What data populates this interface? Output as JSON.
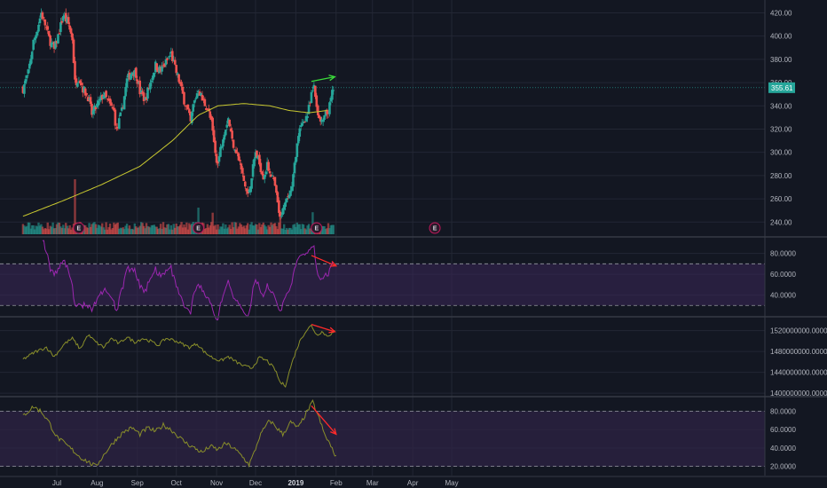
{
  "colors": {
    "background": "#131722",
    "grid": "#232734",
    "up": "#26a69a",
    "down": "#ef5350",
    "sma": "#c9c930",
    "rsi": "#9c27b0",
    "rsi_band": "#3a2657",
    "osc": "#8a8f2a",
    "osc_band": "#2f2446",
    "trend_up": "#3adb3a",
    "trend_down": "#ff2a2a",
    "price_tag": "#26a69a",
    "axis_text": "#b2b5be",
    "earnings": "#c2185b",
    "dashed": "#9598a1"
  },
  "earnings_label": "E",
  "price_tag": "355.61",
  "chart_data": [
    {
      "type": "candlestick",
      "pane": "price",
      "y_ticks": [
        "420.00",
        "400.00",
        "380.00",
        "360.00",
        "340.00",
        "320.00",
        "300.00",
        "280.00",
        "260.00",
        "240.00"
      ],
      "ylim": [
        228,
        428
      ],
      "last_price": 355.61,
      "x_tick_labels": [
        "Jul",
        "Aug",
        "Sep",
        "Oct",
        "Nov",
        "Dec",
        "2019",
        "Feb",
        "Mar",
        "Apr",
        "May"
      ],
      "x_tick_days": [
        16,
        47,
        78,
        108,
        139,
        169,
        200,
        231,
        259,
        290,
        320
      ],
      "earnings_days": [
        33,
        125,
        216,
        307
      ],
      "sma_anchors": [
        [
          -10,
          245
        ],
        [
          20,
          258
        ],
        [
          50,
          272
        ],
        [
          80,
          288
        ],
        [
          105,
          310
        ],
        [
          125,
          332
        ],
        [
          140,
          340
        ],
        [
          160,
          342
        ],
        [
          180,
          340
        ],
        [
          195,
          336
        ],
        [
          210,
          334
        ],
        [
          224,
          336
        ]
      ],
      "anchors": [
        [
          -10,
          355
        ],
        [
          -6,
          368
        ],
        [
          -2,
          395
        ],
        [
          0,
          402
        ],
        [
          4,
          420
        ],
        [
          7,
          410
        ],
        [
          10,
          398
        ],
        [
          14,
          388
        ],
        [
          17,
          400
        ],
        [
          21,
          418
        ],
        [
          25,
          410
        ],
        [
          28,
          398
        ],
        [
          30,
          360
        ],
        [
          33,
          365
        ],
        [
          36,
          355
        ],
        [
          40,
          348
        ],
        [
          43,
          333
        ],
        [
          47,
          340
        ],
        [
          52,
          350
        ],
        [
          56,
          342
        ],
        [
          60,
          335
        ],
        [
          62,
          318
        ],
        [
          66,
          335
        ],
        [
          70,
          362
        ],
        [
          74,
          370
        ],
        [
          77,
          368
        ],
        [
          80,
          352
        ],
        [
          84,
          345
        ],
        [
          88,
          360
        ],
        [
          92,
          375
        ],
        [
          96,
          370
        ],
        [
          100,
          377
        ],
        [
          104,
          385
        ],
        [
          107,
          372
        ],
        [
          110,
          362
        ],
        [
          114,
          345
        ],
        [
          117,
          335
        ],
        [
          119,
          325
        ],
        [
          121,
          340
        ],
        [
          125,
          355
        ],
        [
          128,
          345
        ],
        [
          132,
          338
        ],
        [
          135,
          325
        ],
        [
          138,
          300
        ],
        [
          140,
          290
        ],
        [
          144,
          315
        ],
        [
          148,
          330
        ],
        [
          151,
          310
        ],
        [
          154,
          302
        ],
        [
          157,
          290
        ],
        [
          160,
          275
        ],
        [
          163,
          262
        ],
        [
          166,
          280
        ],
        [
          169,
          300
        ],
        [
          172,
          290
        ],
        [
          175,
          280
        ],
        [
          178,
          288
        ],
        [
          181,
          282
        ],
        [
          184,
          270
        ],
        [
          186,
          255
        ],
        [
          188,
          242
        ],
        [
          191,
          252
        ],
        [
          194,
          262
        ],
        [
          197,
          268
        ],
        [
          200,
          300
        ],
        [
          203,
          318
        ],
        [
          206,
          328
        ],
        [
          209,
          332
        ],
        [
          212,
          348
        ],
        [
          214,
          358
        ],
        [
          216,
          340
        ],
        [
          218,
          328
        ],
        [
          220,
          325
        ],
        [
          222,
          330
        ],
        [
          225,
          335
        ],
        [
          227,
          345
        ],
        [
          229,
          355
        ]
      ],
      "trend_line": {
        "from": [
          212,
          361
        ],
        "to": [
          230,
          365
        ],
        "direction": "up"
      }
    },
    {
      "type": "line",
      "pane": "rsi",
      "y_ticks": [
        "80.0000",
        "60.0000",
        "40.0000"
      ],
      "ylim": [
        20,
        95
      ],
      "bands": [
        30,
        70
      ],
      "trend_line": {
        "from": [
          212,
          78
        ],
        "to": [
          231,
          68
        ],
        "direction": "down"
      }
    },
    {
      "type": "line",
      "pane": "obv",
      "y_ticks": [
        "1520000000.0000",
        "1480000000.0000",
        "1440000000.0000",
        "1400000000.0000"
      ],
      "ylim": [
        1395000000,
        1545000000
      ],
      "anchors": [
        [
          -10,
          1465000000
        ],
        [
          0,
          1480000000
        ],
        [
          8,
          1488000000
        ],
        [
          14,
          1470000000
        ],
        [
          22,
          1495000000
        ],
        [
          28,
          1505000000
        ],
        [
          34,
          1485000000
        ],
        [
          40,
          1512000000
        ],
        [
          46,
          1498000000
        ],
        [
          52,
          1488000000
        ],
        [
          58,
          1505000000
        ],
        [
          64,
          1495000000
        ],
        [
          70,
          1508000000
        ],
        [
          76,
          1498000000
        ],
        [
          82,
          1505000000
        ],
        [
          88,
          1500000000
        ],
        [
          94,
          1492000000
        ],
        [
          100,
          1505000000
        ],
        [
          106,
          1502000000
        ],
        [
          112,
          1495000000
        ],
        [
          118,
          1488000000
        ],
        [
          124,
          1495000000
        ],
        [
          130,
          1478000000
        ],
        [
          136,
          1468000000
        ],
        [
          142,
          1462000000
        ],
        [
          148,
          1470000000
        ],
        [
          154,
          1460000000
        ],
        [
          160,
          1452000000
        ],
        [
          166,
          1448000000
        ],
        [
          172,
          1468000000
        ],
        [
          178,
          1462000000
        ],
        [
          184,
          1445000000
        ],
        [
          188,
          1420000000
        ],
        [
          192,
          1415000000
        ],
        [
          196,
          1450000000
        ],
        [
          200,
          1480000000
        ],
        [
          204,
          1505000000
        ],
        [
          208,
          1520000000
        ],
        [
          212,
          1530000000
        ],
        [
          216,
          1512000000
        ],
        [
          220,
          1518000000
        ],
        [
          224,
          1510000000
        ],
        [
          228,
          1515000000
        ],
        [
          230,
          1518000000
        ]
      ],
      "trend_line": {
        "from": [
          212,
          1532000000
        ],
        "to": [
          230,
          1518000000
        ],
        "direction": "down"
      }
    },
    {
      "type": "line",
      "pane": "oscillator",
      "y_ticks": [
        "80.0000",
        "60.0000",
        "40.0000",
        "20.0000"
      ],
      "ylim": [
        10,
        95
      ],
      "bands": [
        20,
        80
      ],
      "anchors": [
        [
          -10,
          75
        ],
        [
          -2,
          85
        ],
        [
          4,
          80
        ],
        [
          10,
          68
        ],
        [
          16,
          52
        ],
        [
          22,
          45
        ],
        [
          28,
          38
        ],
        [
          34,
          30
        ],
        [
          40,
          25
        ],
        [
          46,
          20
        ],
        [
          50,
          28
        ],
        [
          56,
          40
        ],
        [
          62,
          50
        ],
        [
          68,
          58
        ],
        [
          74,
          62
        ],
        [
          80,
          55
        ],
        [
          86,
          62
        ],
        [
          92,
          58
        ],
        [
          98,
          65
        ],
        [
          104,
          60
        ],
        [
          110,
          52
        ],
        [
          116,
          45
        ],
        [
          122,
          40
        ],
        [
          128,
          35
        ],
        [
          134,
          42
        ],
        [
          140,
          38
        ],
        [
          146,
          45
        ],
        [
          152,
          40
        ],
        [
          158,
          32
        ],
        [
          164,
          22
        ],
        [
          168,
          35
        ],
        [
          172,
          52
        ],
        [
          176,
          62
        ],
        [
          180,
          70
        ],
        [
          184,
          64
        ],
        [
          190,
          55
        ],
        [
          196,
          68
        ],
        [
          202,
          62
        ],
        [
          208,
          78
        ],
        [
          213,
          90
        ],
        [
          218,
          72
        ],
        [
          222,
          55
        ],
        [
          226,
          45
        ],
        [
          229,
          35
        ],
        [
          231,
          32
        ]
      ],
      "trend_line": {
        "from": [
          212,
          86
        ],
        "to": [
          231,
          55
        ],
        "direction": "down"
      }
    }
  ]
}
